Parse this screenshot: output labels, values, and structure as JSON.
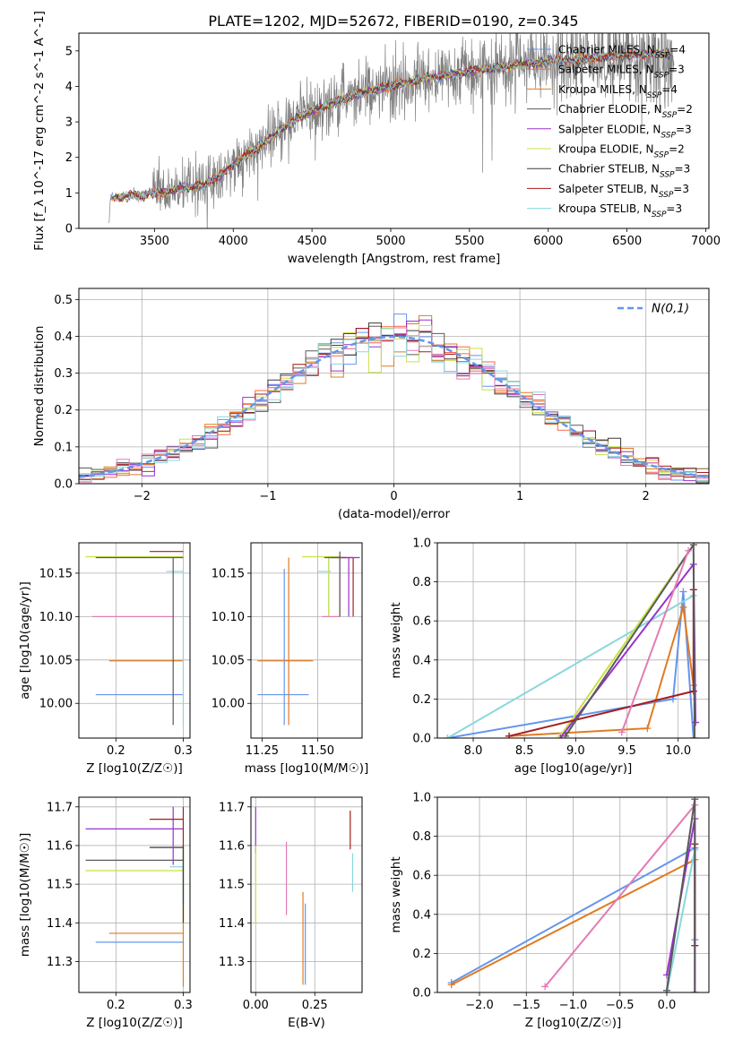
{
  "figure": {
    "title": "PLATE=1202, MJD=52672, FIBERID=0190, z=0.345"
  },
  "colors": {
    "Chabrier MILES": "#6495ed",
    "Salpeter MILES": "#ff6347",
    "Kroupa MILES": "#e07b20",
    "Chabrier ELODIE": "#5a5a5a",
    "Salpeter ELODIE": "#9932cc",
    "Kroupa ELODIE": "#c8e046",
    "Chabrier STELIB": "#3c3c3c",
    "Salpeter STELIB": "#a51d1d",
    "Kroupa STELIB": "#87d8dc",
    "data": "#808080",
    "pink": "#e37bb5",
    "normal": "#6495ed"
  },
  "chart_data": [
    {
      "id": "spectrum",
      "type": "line",
      "title": "PLATE=1202, MJD=52672, FIBERID=0190, z=0.345",
      "xlabel": "wavelength [Angstrom, rest frame]",
      "ylabel": "Flux [f_λ 10^-17 erg cm^-2 s^-1 A^-1]",
      "xlim": [
        3020,
        7020
      ],
      "ylim": [
        0,
        5.5
      ],
      "xticks": [
        3500,
        4000,
        4500,
        5000,
        5500,
        6000,
        6500,
        7000
      ],
      "yticks": [
        0,
        1,
        2,
        3,
        4,
        5
      ],
      "legend_position": "top-right",
      "legend": [
        {
          "name": "Chabrier MILES",
          "nssp": 4
        },
        {
          "name": "Salpeter MILES",
          "nssp": 3
        },
        {
          "name": "Kroupa MILES",
          "nssp": 4
        },
        {
          "name": "Chabrier ELODIE",
          "nssp": 2
        },
        {
          "name": "Salpeter ELODIE",
          "nssp": 3
        },
        {
          "name": "Kroupa ELODIE",
          "nssp": 2
        },
        {
          "name": "Chabrier STELIB",
          "nssp": 3
        },
        {
          "name": "Salpeter STELIB",
          "nssp": 3
        },
        {
          "name": "Kroupa STELIB",
          "nssp": 3
        }
      ],
      "continuum": [
        [
          3210,
          0
        ],
        [
          3220,
          0.85
        ],
        [
          3300,
          0.9
        ],
        [
          3450,
          0.95
        ],
        [
          3600,
          1.05
        ],
        [
          3700,
          1.15
        ],
        [
          3800,
          1.2
        ],
        [
          3900,
          1.45
        ],
        [
          4000,
          1.8
        ],
        [
          4200,
          2.4
        ],
        [
          4400,
          3.1
        ],
        [
          4600,
          3.5
        ],
        [
          4800,
          3.8
        ],
        [
          5000,
          4.0
        ],
        [
          5200,
          4.2
        ],
        [
          5400,
          4.35
        ],
        [
          5600,
          4.5
        ],
        [
          5800,
          4.6
        ],
        [
          6000,
          4.7
        ],
        [
          6200,
          4.75
        ],
        [
          6400,
          4.85
        ],
        [
          6600,
          4.9
        ],
        [
          6800,
          4.95
        ]
      ]
    },
    {
      "id": "residuals",
      "type": "line",
      "xlabel": "(data-model)/error",
      "ylabel": "Normed distribution",
      "xlim": [
        -2.5,
        2.5
      ],
      "ylim": [
        0,
        0.53
      ],
      "xticks": [
        -2,
        -1,
        0,
        1,
        2
      ],
      "yticks": [
        0.0,
        0.1,
        0.2,
        0.3,
        0.4,
        0.5
      ],
      "legend": [
        {
          "name": "N(0,1)",
          "style": "dashed"
        }
      ],
      "legend_position": "top-right",
      "grid": true,
      "bins": [
        -2.5,
        -2.4,
        -2.3,
        -2.2,
        -2.1,
        -2.0,
        -1.9,
        -1.8,
        -1.7,
        -1.6,
        -1.5,
        -1.4,
        -1.3,
        -1.2,
        -1.1,
        -1.0,
        -0.9,
        -0.8,
        -0.7,
        -0.6,
        -0.5,
        -0.4,
        -0.3,
        -0.2,
        -0.1,
        0.0,
        0.1,
        0.2,
        0.3,
        0.4,
        0.5,
        0.6,
        0.7,
        0.8,
        0.9,
        1.0,
        1.1,
        1.2,
        1.3,
        1.4,
        1.5,
        1.6,
        1.7,
        1.8,
        1.9,
        2.0,
        2.1,
        2.2,
        2.3,
        2.4,
        2.5
      ],
      "normal_pdf_curve": {
        "mean": 0,
        "sigma": 1
      }
    },
    {
      "id": "age-vs-Z",
      "type": "scatter",
      "xlabel": "Z [log10(Z/Z☉)]",
      "ylabel": "age  [log10(age/yr)]",
      "xlim": [
        0.145,
        0.31
      ],
      "ylim": [
        9.96,
        10.185
      ],
      "xticks": [
        0.2,
        0.3
      ],
      "yticks": [
        10.0,
        10.05,
        10.1,
        10.15
      ],
      "points": [
        {
          "series": "Chabrier MILES",
          "x": 0.3,
          "y": 10.01,
          "xerr": [
            0.17,
            0.3
          ],
          "yerr": [
            10.01,
            10.01
          ]
        },
        {
          "series": "Kroupa MILES",
          "x": 0.3,
          "y": 10.049,
          "xerr": [
            0.19,
            0.3
          ],
          "yerr": [
            10.049,
            10.049
          ]
        },
        {
          "series": "pink",
          "x": 0.285,
          "y": 10.1,
          "xerr": [
            0.165,
            0.285
          ],
          "yerr": [
            10.1,
            10.1
          ]
        },
        {
          "series": "Kroupa STELIB",
          "x": 0.3,
          "y": 10.152,
          "xerr": [
            0.275,
            0.3
          ],
          "yerr": [
            9.975,
            10.152
          ]
        },
        {
          "series": "Kroupa ELODIE",
          "x": 0.3,
          "y": 10.169,
          "xerr": [
            0.155,
            0.3
          ],
          "yerr": [
            10.169,
            10.169
          ]
        },
        {
          "series": "Salpeter STELIB",
          "x": 0.3,
          "y": 10.175,
          "xerr": [
            0.25,
            0.3
          ],
          "yerr": [
            10.175,
            10.175
          ]
        },
        {
          "series": "Chabrier ELODIE",
          "x": 0.285,
          "y": 10.168,
          "xerr": [
            0.17,
            0.3
          ],
          "yerr": [
            9.975,
            10.168
          ]
        }
      ]
    },
    {
      "id": "age-vs-mass",
      "type": "scatter",
      "xlabel": "mass [log10(M/M☉)]",
      "ylabel": "",
      "xlim": [
        11.2,
        11.7
      ],
      "ylim": [
        9.96,
        10.185
      ],
      "xticks": [
        11.25,
        11.5
      ],
      "yticks": [
        10.0,
        10.05,
        10.1,
        10.15
      ],
      "points": [
        {
          "series": "Chabrier MILES",
          "x": 11.35,
          "y": 10.01,
          "xerr": [
            11.23,
            11.46
          ],
          "yerr": [
            9.975,
            10.155
          ]
        },
        {
          "series": "Kroupa MILES",
          "x": 11.37,
          "y": 10.049,
          "xerr": [
            11.23,
            11.48
          ],
          "yerr": [
            9.975,
            10.168
          ]
        },
        {
          "series": "pink",
          "x": 11.6,
          "y": 10.1,
          "xerr": [
            11.52,
            11.6
          ],
          "yerr": [
            10.1,
            10.17
          ]
        },
        {
          "series": "Kroupa STELIB",
          "x": 11.55,
          "y": 10.152,
          "xerr": [
            11.5,
            11.56
          ],
          "yerr": [
            10.1,
            10.17
          ]
        },
        {
          "series": "Kroupa ELODIE",
          "x": 11.55,
          "y": 10.169,
          "xerr": [
            11.43,
            11.6
          ],
          "yerr": [
            10.1,
            10.169
          ]
        },
        {
          "series": "Salpeter STELIB",
          "x": 11.66,
          "y": 10.168,
          "xerr": [
            11.56,
            11.66
          ],
          "yerr": [
            10.1,
            10.168
          ]
        },
        {
          "series": "Salpeter ELODIE",
          "x": 11.64,
          "y": 10.168,
          "xerr": [
            11.6,
            11.69
          ],
          "yerr": [
            10.1,
            10.168
          ]
        },
        {
          "series": "Chabrier ELODIE",
          "x": 11.6,
          "y": 10.168,
          "xerr": [
            11.53,
            11.63
          ],
          "yerr": [
            10.1,
            10.175
          ]
        }
      ]
    },
    {
      "id": "weight-vs-age",
      "type": "line",
      "xlabel": "age  [log10(age/yr)]",
      "ylabel": "mass weight",
      "xlim": [
        7.65,
        10.3
      ],
      "ylim": [
        0,
        1.0
      ],
      "xticks": [
        8.0,
        8.5,
        9.0,
        9.5,
        10.0
      ],
      "yticks": [
        0.0,
        0.2,
        0.4,
        0.6,
        0.8,
        1.0
      ],
      "grid": true,
      "series": [
        {
          "name": "Chabrier MILES",
          "points": [
            [
              7.75,
              0.0
            ],
            [
              9.95,
              0.2
            ],
            [
              10.05,
              0.75
            ],
            [
              10.15,
              0.0
            ]
          ]
        },
        {
          "name": "Kroupa MILES",
          "points": [
            [
              8.35,
              0.01
            ],
            [
              9.7,
              0.05
            ],
            [
              10.05,
              0.67
            ],
            [
              10.15,
              0.27
            ]
          ]
        },
        {
          "name": "Kroupa STELIB",
          "points": [
            [
              7.75,
              0.0
            ],
            [
              10.15,
              0.73
            ]
          ]
        },
        {
          "name": "Kroupa ELODIE",
          "points": [
            [
              8.85,
              0.01
            ],
            [
              10.15,
              0.99
            ]
          ]
        },
        {
          "name": "Salpeter ELODIE",
          "points": [
            [
              8.85,
              0.0
            ],
            [
              10.15,
              0.89
            ],
            [
              10.17,
              0.08
            ]
          ]
        },
        {
          "name": "Salpeter STELIB",
          "points": [
            [
              8.35,
              0.01
            ],
            [
              10.15,
              0.24
            ],
            [
              10.15,
              0.76
            ]
          ]
        },
        {
          "name": "Chabrier ELODIE",
          "points": [
            [
              8.9,
              0.01
            ],
            [
              10.15,
              0.99
            ],
            [
              10.16,
              0.0
            ]
          ]
        },
        {
          "name": "pink",
          "points": [
            [
              9.45,
              0.03
            ],
            [
              10.1,
              0.96
            ]
          ]
        }
      ]
    },
    {
      "id": "mass-vs-Z",
      "type": "scatter",
      "xlabel": "Z [log10(Z/Z☉)]",
      "ylabel": "mass [log10(M/M☉)]",
      "xlim": [
        0.145,
        0.31
      ],
      "ylim": [
        11.22,
        11.725
      ],
      "xticks": [
        0.2,
        0.3
      ],
      "yticks": [
        11.3,
        11.4,
        11.5,
        11.6,
        11.7
      ],
      "points": [
        {
          "series": "Chabrier MILES",
          "x": 0.3,
          "y": 11.35,
          "xerr": [
            0.17,
            0.3
          ],
          "yerr": [
            11.35,
            11.35
          ]
        },
        {
          "series": "Kroupa MILES",
          "x": 0.3,
          "y": 11.373,
          "xerr": [
            0.19,
            0.3
          ],
          "yerr": [
            11.235,
            11.45
          ]
        },
        {
          "series": "Kroupa ELODIE",
          "x": 0.3,
          "y": 11.535,
          "xerr": [
            0.155,
            0.3
          ],
          "yerr": [
            11.4,
            11.6
          ]
        },
        {
          "series": "Kroupa STELIB",
          "x": 0.3,
          "y": 11.545,
          "xerr": [
            0.28,
            0.3
          ],
          "yerr": [
            11.45,
            11.58
          ]
        },
        {
          "series": "Chabrier ELODIE",
          "x": 0.3,
          "y": 11.562,
          "xerr": [
            0.155,
            0.3
          ],
          "yerr": [
            11.45,
            11.6
          ]
        },
        {
          "series": "Chabrier STELIB",
          "x": 0.3,
          "y": 11.595,
          "xerr": [
            0.25,
            0.3
          ],
          "yerr": [
            11.4,
            11.6
          ]
        },
        {
          "series": "Salpeter ELODIE",
          "x": 0.285,
          "y": 11.643,
          "xerr": [
            0.155,
            0.3
          ],
          "yerr": [
            11.55,
            11.7
          ]
        },
        {
          "series": "Salpeter STELIB",
          "x": 0.3,
          "y": 11.668,
          "xerr": [
            0.25,
            0.3
          ],
          "yerr": [
            11.6,
            11.7
          ]
        }
      ]
    },
    {
      "id": "mass-vs-ebv",
      "type": "scatter",
      "xlabel": "E(B-V)",
      "ylabel": "",
      "xlim": [
        -0.02,
        0.45
      ],
      "ylim": [
        11.22,
        11.725
      ],
      "xticks": [
        0.0,
        0.25
      ],
      "yticks": [
        11.3,
        11.4,
        11.5,
        11.6,
        11.7
      ],
      "points": [
        {
          "series": "Salpeter ELODIE",
          "x": 0.0,
          "y": 11.64,
          "yerr": [
            11.58,
            11.7
          ]
        },
        {
          "series": "Kroupa ELODIE",
          "x": 0.0,
          "y": 11.53,
          "yerr": [
            11.4,
            11.6
          ]
        },
        {
          "series": "pink",
          "x": 0.13,
          "y": 11.52,
          "yerr": [
            11.42,
            11.61
          ]
        },
        {
          "series": "Kroupa MILES",
          "x": 0.2,
          "y": 11.37,
          "yerr": [
            11.24,
            11.48
          ]
        },
        {
          "series": "Chabrier MILES",
          "x": 0.21,
          "y": 11.35,
          "yerr": [
            11.24,
            11.45
          ]
        },
        {
          "series": "Salpeter STELIB",
          "x": 0.4,
          "y": 11.64,
          "yerr": [
            11.59,
            11.69
          ]
        },
        {
          "series": "Kroupa STELIB",
          "x": 0.41,
          "y": 11.54,
          "yerr": [
            11.48,
            11.58
          ]
        }
      ]
    },
    {
      "id": "weight-vs-Z",
      "type": "line",
      "xlabel": "Z [log10(Z/Z☉)]",
      "ylabel": "mass weight",
      "xlim": [
        -2.45,
        0.45
      ],
      "ylim": [
        0,
        1.0
      ],
      "xticks": [
        -2.0,
        -1.5,
        -1.0,
        -0.5,
        0.0
      ],
      "yticks": [
        0.0,
        0.2,
        0.4,
        0.6,
        0.8,
        1.0
      ],
      "grid": true,
      "series": [
        {
          "name": "Chabrier MILES",
          "points": [
            [
              -2.3,
              0.05
            ],
            [
              0.3,
              0.74
            ],
            [
              0.3,
              0.27
            ]
          ]
        },
        {
          "name": "Kroupa MILES",
          "points": [
            [
              -2.3,
              0.04
            ],
            [
              0.3,
              0.68
            ]
          ]
        },
        {
          "name": "pink",
          "points": [
            [
              -1.3,
              0.03
            ],
            [
              0.3,
              0.96
            ]
          ]
        },
        {
          "name": "Salpeter ELODIE",
          "points": [
            [
              0.0,
              0.09
            ],
            [
              0.3,
              0.89
            ],
            [
              0.3,
              0.0
            ]
          ]
        },
        {
          "name": "Salpeter STELIB",
          "points": [
            [
              0.3,
              0.24
            ],
            [
              0.3,
              0.76
            ]
          ]
        },
        {
          "name": "Kroupa STELIB",
          "points": [
            [
              0.0,
              0.0
            ],
            [
              0.3,
              0.73
            ]
          ]
        },
        {
          "name": "Chabrier ELODIE",
          "points": [
            [
              0.0,
              0.01
            ],
            [
              0.3,
              0.99
            ],
            [
              0.3,
              0.0
            ]
          ]
        }
      ]
    }
  ]
}
